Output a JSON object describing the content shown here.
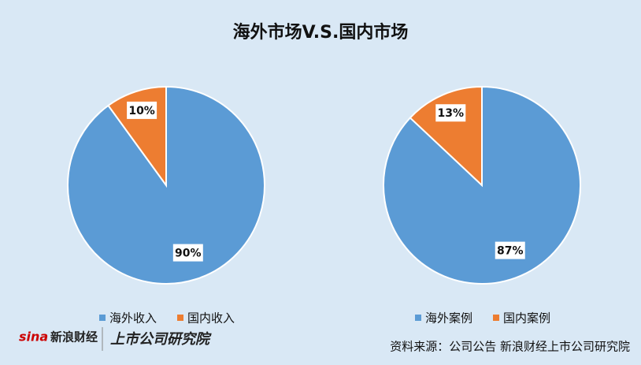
{
  "title": "海外市场V.S.国内市场",
  "chart_data": [
    {
      "type": "pie",
      "categories": [
        "海外收入",
        "国内收入"
      ],
      "values": [
        90,
        10
      ],
      "value_labels": [
        "90%",
        "10%"
      ],
      "colors": [
        "#5b9bd5",
        "#ed7d31"
      ]
    },
    {
      "type": "pie",
      "categories": [
        "海外案例",
        "国内案例"
      ],
      "values": [
        87,
        13
      ],
      "value_labels": [
        "87%",
        "13%"
      ],
      "colors": [
        "#5b9bd5",
        "#ed7d31"
      ]
    }
  ],
  "logo": {
    "sina": "sina",
    "brand": "新浪财经",
    "institute": "上市公司研究院"
  },
  "source": "资料来源：公司公告 新浪财经上市公司研究院"
}
